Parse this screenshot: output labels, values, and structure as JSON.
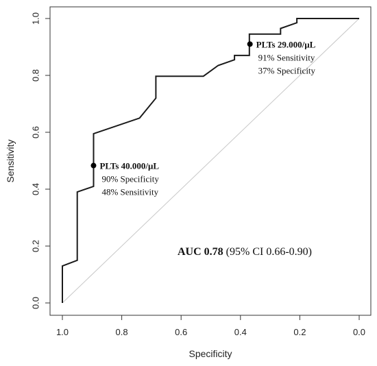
{
  "chart_data": {
    "type": "line",
    "title": "",
    "xlabel": "Specificity",
    "ylabel": "Sensitivity",
    "xlim": [
      1.0,
      0.0
    ],
    "ylim": [
      0.0,
      1.0
    ],
    "x_reversed": true,
    "xticks": [
      "1.0",
      "0.8",
      "0.6",
      "0.4",
      "0.2",
      "0.0"
    ],
    "xtick_values": [
      1.0,
      0.8,
      0.6,
      0.4,
      0.2,
      0.0
    ],
    "yticks": [
      "0.0",
      "0.2",
      "0.4",
      "0.6",
      "0.8",
      "1.0"
    ],
    "ytick_values": [
      0.0,
      0.2,
      0.4,
      0.6,
      0.8,
      1.0
    ],
    "grid": false,
    "series": [
      {
        "values": [
          {
            "x": 1.0,
            "y": 0.0
          },
          {
            "x": 1.0,
            "y": 0.13
          },
          {
            "x": 0.95,
            "y": 0.15
          },
          {
            "x": 0.95,
            "y": 0.39
          },
          {
            "x": 0.895,
            "y": 0.41
          },
          {
            "x": 0.895,
            "y": 0.595
          },
          {
            "x": 0.74,
            "y": 0.65
          },
          {
            "x": 0.685,
            "y": 0.72
          },
          {
            "x": 0.685,
            "y": 0.797
          },
          {
            "x": 0.525,
            "y": 0.797
          },
          {
            "x": 0.475,
            "y": 0.835
          },
          {
            "x": 0.42,
            "y": 0.855
          },
          {
            "x": 0.42,
            "y": 0.87
          },
          {
            "x": 0.37,
            "y": 0.87
          },
          {
            "x": 0.37,
            "y": 0.945
          },
          {
            "x": 0.265,
            "y": 0.945
          },
          {
            "x": 0.265,
            "y": 0.965
          },
          {
            "x": 0.21,
            "y": 0.985
          },
          {
            "x": 0.21,
            "y": 1.0
          },
          {
            "x": 0.0,
            "y": 1.0
          }
        ],
        "color": "#1a1a1a"
      },
      {
        "values": [
          {
            "x": 1.0,
            "y": 0.0
          },
          {
            "x": 0.0,
            "y": 1.0
          }
        ],
        "color": "#c8c8c8"
      }
    ],
    "annotations": [
      {
        "x": 0.368,
        "y": 0.91,
        "lines": [
          "PLTs  29.000/μL",
          "91% Sensitivity",
          "37% Specificity"
        ]
      },
      {
        "x": 0.895,
        "y": 0.483,
        "lines": [
          "PLTs  40.000/μL",
          "90% Specificity",
          "48% Sensitivity"
        ]
      }
    ],
    "auc_text": {
      "bold": "AUC 0.78",
      "rest": " (95% CI 0.66-0.90)"
    }
  }
}
